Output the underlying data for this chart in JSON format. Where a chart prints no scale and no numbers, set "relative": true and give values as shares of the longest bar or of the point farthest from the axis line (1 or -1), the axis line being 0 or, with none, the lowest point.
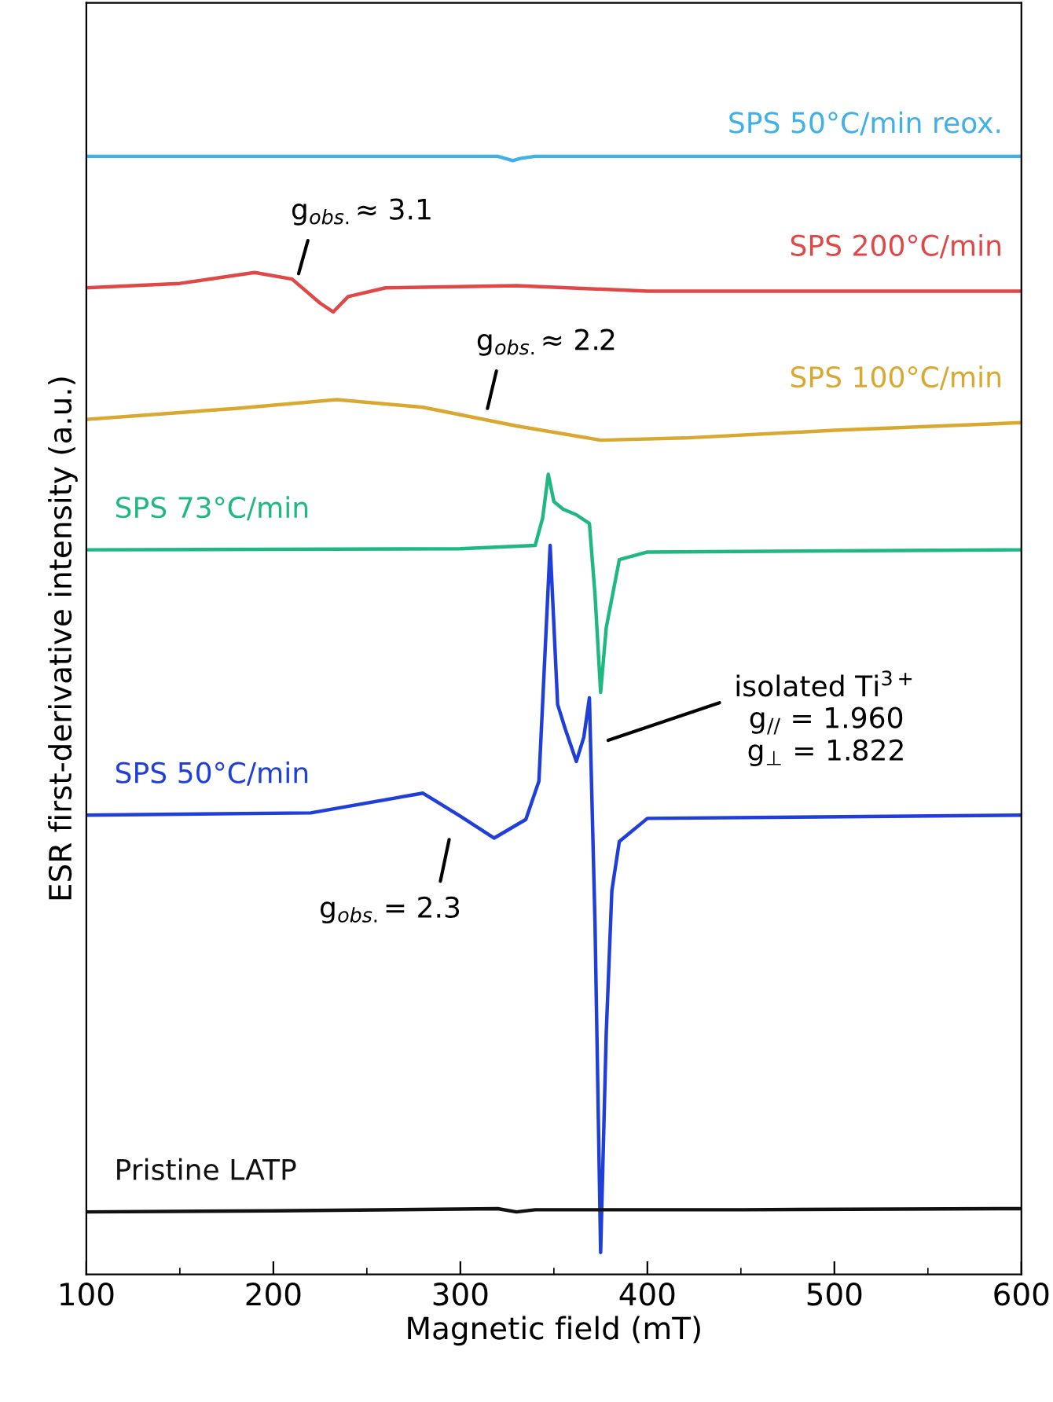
{
  "chart_data": {
    "type": "line",
    "relative": true,
    "xlabel": "Magnetic field (mT)",
    "ylabel": "ESR first-derivative intensity (a.u.)",
    "xlim": [
      100,
      600
    ],
    "xticks": [
      100,
      {
        "value": 150,
        "label": null
      },
      200,
      {
        "value": 250,
        "label": null
      },
      300,
      {
        "value": 350,
        "label": null
      },
      400,
      {
        "value": 450,
        "label": null
      },
      500,
      {
        "value": 550,
        "label": null
      },
      600
    ],
    "legend": false,
    "grid": false,
    "marker": "none",
    "line_style": "solid",
    "series": [
      {
        "name": "SPS 50°C/min reox.",
        "color": "#3fb0e8",
        "x": [
          100,
          200,
          320,
          328,
          332,
          340,
          450,
          600
        ],
        "values": [
          1.0,
          1.0,
          1.0,
          0.996,
          0.998,
          1.0,
          1.0,
          1.0
        ]
      },
      {
        "name": "SPS 200°C/min",
        "color": "#e04848",
        "x": [
          100,
          150,
          190,
          210,
          225,
          232,
          240,
          260,
          330,
          400,
          600
        ],
        "values": [
          0.88,
          0.884,
          0.894,
          0.888,
          0.866,
          0.858,
          0.872,
          0.88,
          0.882,
          0.877,
          0.877
        ]
      },
      {
        "name": "SPS 100°C/min",
        "color": "#d9a830",
        "x": [
          100,
          180,
          234,
          280,
          330,
          375,
          420,
          500,
          600
        ],
        "values": [
          0.76,
          0.77,
          0.778,
          0.771,
          0.754,
          0.741,
          0.743,
          0.75,
          0.757
        ]
      },
      {
        "name": "SPS 73°C/min",
        "color": "#20b882",
        "x": [
          100,
          300,
          340,
          344,
          347,
          350,
          355,
          362,
          369,
          372,
          375,
          378,
          385,
          400,
          600
        ],
        "values": [
          0.641,
          0.642,
          0.645,
          0.67,
          0.71,
          0.685,
          0.678,
          0.673,
          0.665,
          0.6,
          0.511,
          0.57,
          0.632,
          0.639,
          0.641
        ]
      },
      {
        "name": "SPS 50°C/min",
        "color": "#1f3fd8",
        "x": [
          100,
          220,
          280,
          300,
          318,
          335,
          342,
          348,
          352,
          356,
          362,
          366,
          369,
          372,
          375,
          378,
          381,
          385,
          400,
          600
        ],
        "values": [
          0.399,
          0.401,
          0.419,
          0.398,
          0.378,
          0.395,
          0.43,
          0.645,
          0.5,
          0.478,
          0.448,
          0.47,
          0.506,
          0.3,
          0.0,
          0.2,
          0.33,
          0.375,
          0.396,
          0.399
        ]
      },
      {
        "name": "Pristine LATP",
        "color": "#111111",
        "x": [
          100,
          200,
          320,
          330,
          340,
          450,
          600
        ],
        "values": [
          0.037,
          0.038,
          0.04,
          0.037,
          0.039,
          0.039,
          0.04
        ]
      }
    ],
    "annotations": [
      "g$_{obs.}$≈ 3.1",
      "g$_{obs.}$≈ 2.2",
      "isolated Ti$^{3+}$\ng$_{//}$ = 1.960\ng$_{⊥}$ = 1.822",
      "g$_{obs.}$= 2.3"
    ]
  }
}
